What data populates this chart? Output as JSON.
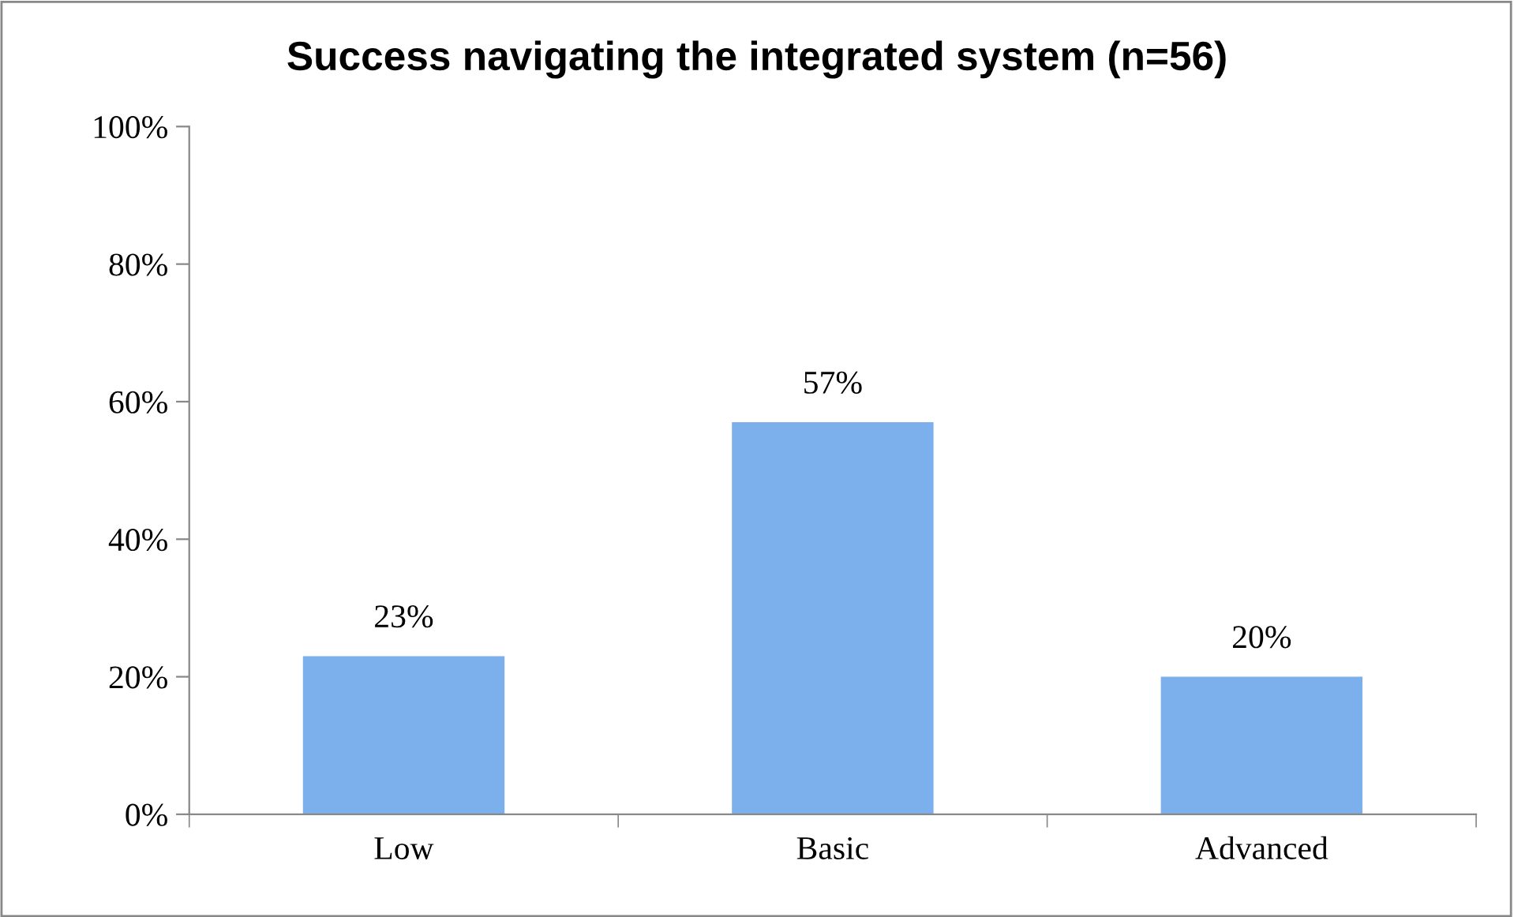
{
  "chart_data": {
    "type": "bar",
    "title": "Success navigating the integrated system (n=56)",
    "categories": [
      "Low",
      "Basic",
      "Advanced"
    ],
    "values": [
      23,
      57,
      20
    ],
    "value_labels": [
      "23%",
      "57%",
      "20%"
    ],
    "color": "#7bb0ec",
    "ylim": [
      0,
      100
    ],
    "yticks": [
      {
        "value": 0,
        "label": "0%"
      },
      {
        "value": 20,
        "label": "20%"
      },
      {
        "value": 40,
        "label": "40%"
      },
      {
        "value": 60,
        "label": "60%"
      },
      {
        "value": 80,
        "label": "80%"
      },
      {
        "value": 100,
        "label": "100%"
      }
    ],
    "grid": false,
    "legend": false
  }
}
